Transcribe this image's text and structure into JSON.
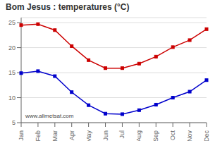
{
  "chart_data": {
    "type": "line",
    "title": "Bom Jesus : temperatures (°C)",
    "categories": [
      "Jan",
      "Feb",
      "Mar",
      "Apr",
      "May",
      "Jun",
      "Jul",
      "Aug",
      "Sep",
      "Oct",
      "Nov",
      "Dec"
    ],
    "series": [
      {
        "color": "#cc0000",
        "values": [
          24.5,
          24.7,
          23.5,
          20.3,
          17.5,
          15.9,
          15.9,
          16.8,
          18.2,
          20.1,
          21.5,
          23.7
        ],
        "marker": "square"
      },
      {
        "color": "#0000cc",
        "values": [
          14.9,
          15.3,
          14.3,
          11.1,
          8.5,
          6.8,
          6.7,
          7.5,
          8.6,
          10.0,
          11.2,
          13.5
        ],
        "marker": "square"
      }
    ],
    "ylim": [
      5,
      26
    ],
    "yticks": [
      5,
      10,
      15,
      20,
      25
    ],
    "grid": true,
    "annotations": [
      "www.allmetsat.com"
    ]
  }
}
